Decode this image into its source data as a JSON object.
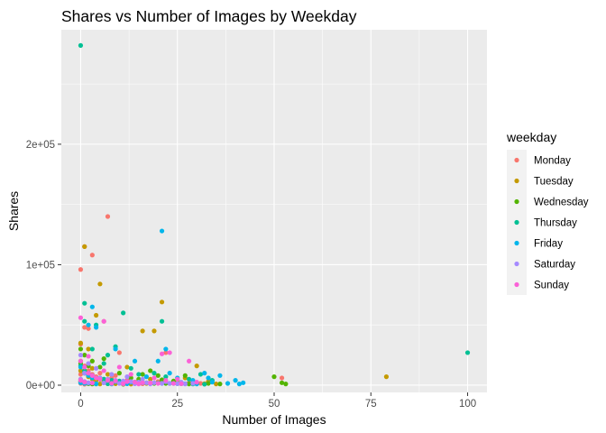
{
  "chart_data": {
    "type": "scatter",
    "title": "Shares vs Number of Images by Weekday",
    "xlabel": "Number of Images",
    "ylabel": "Shares",
    "xlim": [
      -5,
      105
    ],
    "ylim": [
      -6000,
      295000
    ],
    "x_ticks": [
      0,
      25,
      50,
      75,
      100
    ],
    "x_tick_labels": [
      "0",
      "25",
      "50",
      "75",
      "100"
    ],
    "y_ticks": [
      0,
      100000,
      200000
    ],
    "y_tick_labels": [
      "0e+00",
      "1e+05",
      "2e+05"
    ],
    "grid": true,
    "legend_title": "weekday",
    "legend_position": "right",
    "series": [
      {
        "name": "Monday",
        "color": "#F8766D",
        "points": [
          [
            7,
            140000
          ],
          [
            1,
            115000
          ],
          [
            3,
            108000
          ],
          [
            0,
            96000
          ],
          [
            1,
            48000
          ],
          [
            2,
            47000
          ],
          [
            6,
            53000
          ],
          [
            0,
            34000
          ],
          [
            10,
            27000
          ],
          [
            22,
            27000
          ],
          [
            0,
            20000
          ],
          [
            1,
            16000
          ],
          [
            2,
            12000
          ],
          [
            3,
            9000
          ],
          [
            4,
            7000
          ],
          [
            5,
            5000
          ],
          [
            6,
            4000
          ],
          [
            8,
            6000
          ],
          [
            10,
            3000
          ],
          [
            12,
            4000
          ],
          [
            15,
            3000
          ],
          [
            18,
            2000
          ],
          [
            20,
            3000
          ],
          [
            24,
            2000
          ],
          [
            28,
            2000
          ],
          [
            31,
            1500
          ],
          [
            52,
            6000
          ],
          [
            0,
            5000
          ],
          [
            1,
            3000
          ],
          [
            2,
            2000
          ],
          [
            0,
            1500
          ],
          [
            1,
            800
          ],
          [
            3,
            1500
          ],
          [
            7,
            1200
          ],
          [
            11,
            1000
          ],
          [
            13,
            2000
          ],
          [
            16,
            1200
          ],
          [
            9,
            8000
          ],
          [
            5,
            10000
          ],
          [
            0,
            9000
          ]
        ]
      },
      {
        "name": "Tuesday",
        "color": "#C49A00",
        "points": [
          [
            1,
            115000
          ],
          [
            5,
            84000
          ],
          [
            21,
            69000
          ],
          [
            4,
            58000
          ],
          [
            16,
            45000
          ],
          [
            19,
            45000
          ],
          [
            0,
            35000
          ],
          [
            2,
            30000
          ],
          [
            79,
            7000
          ],
          [
            12,
            15000
          ],
          [
            30,
            16000
          ],
          [
            0,
            20000
          ],
          [
            1,
            10000
          ],
          [
            2,
            7000
          ],
          [
            3,
            5000
          ],
          [
            4,
            4000
          ],
          [
            6,
            3000
          ],
          [
            8,
            2500
          ],
          [
            11,
            2000
          ],
          [
            14,
            2500
          ],
          [
            17,
            1500
          ],
          [
            20,
            2000
          ],
          [
            23,
            1500
          ],
          [
            26,
            2000
          ],
          [
            29,
            1500
          ],
          [
            32,
            1200
          ],
          [
            35,
            1000
          ],
          [
            0,
            3000
          ],
          [
            1,
            1800
          ],
          [
            2,
            1200
          ],
          [
            5,
            1000
          ],
          [
            9,
            1200
          ],
          [
            13,
            900
          ],
          [
            0,
            12000
          ],
          [
            3,
            14000
          ],
          [
            7,
            9000
          ],
          [
            18,
            5000
          ],
          [
            25,
            4000
          ],
          [
            27,
            6000
          ],
          [
            33,
            3000
          ]
        ]
      },
      {
        "name": "Wednesday",
        "color": "#53B400",
        "points": [
          [
            0,
            30000
          ],
          [
            1,
            25000
          ],
          [
            3,
            20000
          ],
          [
            5,
            15000
          ],
          [
            50,
            7000
          ],
          [
            52,
            2000
          ],
          [
            53,
            1000
          ],
          [
            10,
            10000
          ],
          [
            15,
            5000
          ],
          [
            20,
            8000
          ],
          [
            0,
            18000
          ],
          [
            1,
            12000
          ],
          [
            2,
            8000
          ],
          [
            4,
            6000
          ],
          [
            6,
            5000
          ],
          [
            7,
            4000
          ],
          [
            9,
            3000
          ],
          [
            12,
            2500
          ],
          [
            14,
            2000
          ],
          [
            17,
            2000
          ],
          [
            19,
            1500
          ],
          [
            22,
            1500
          ],
          [
            25,
            1200
          ],
          [
            28,
            1000
          ],
          [
            30,
            2000
          ],
          [
            33,
            1500
          ],
          [
            36,
            1000
          ],
          [
            0,
            3000
          ],
          [
            1,
            2000
          ],
          [
            3,
            1000
          ],
          [
            8,
            1500
          ],
          [
            11,
            800
          ],
          [
            24,
            3500
          ],
          [
            27,
            8000
          ],
          [
            18,
            12000
          ],
          [
            6,
            22000
          ],
          [
            2,
            16000
          ],
          [
            13,
            6000
          ],
          [
            16,
            9000
          ],
          [
            21,
            4500
          ]
        ]
      },
      {
        "name": "Thursday",
        "color": "#00C094",
        "points": [
          [
            0,
            282000
          ],
          [
            1,
            68000
          ],
          [
            11,
            60000
          ],
          [
            21,
            53000
          ],
          [
            1,
            53000
          ],
          [
            4,
            50000
          ],
          [
            9,
            32000
          ],
          [
            100,
            27000
          ],
          [
            7,
            25000
          ],
          [
            0,
            16000
          ],
          [
            1,
            12000
          ],
          [
            2,
            10000
          ],
          [
            3,
            8000
          ],
          [
            5,
            6000
          ],
          [
            6,
            5000
          ],
          [
            8,
            4000
          ],
          [
            10,
            3500
          ],
          [
            12,
            3000
          ],
          [
            14,
            2500
          ],
          [
            16,
            2000
          ],
          [
            18,
            2000
          ],
          [
            20,
            1800
          ],
          [
            23,
            1500
          ],
          [
            26,
            1200
          ],
          [
            29,
            1000
          ],
          [
            32,
            800
          ],
          [
            0,
            3000
          ],
          [
            1,
            2000
          ],
          [
            2,
            1500
          ],
          [
            4,
            1000
          ],
          [
            7,
            1200
          ],
          [
            19,
            10000
          ],
          [
            22,
            7000
          ],
          [
            28,
            5000
          ],
          [
            31,
            9000
          ],
          [
            34,
            4000
          ],
          [
            3,
            30000
          ],
          [
            6,
            18000
          ],
          [
            13,
            14000
          ],
          [
            15,
            9000
          ]
        ]
      },
      {
        "name": "Friday",
        "color": "#00B6EB",
        "points": [
          [
            21,
            128000
          ],
          [
            3,
            65000
          ],
          [
            2,
            50000
          ],
          [
            4,
            48000
          ],
          [
            9,
            30000
          ],
          [
            22,
            30000
          ],
          [
            14,
            20000
          ],
          [
            20,
            20000
          ],
          [
            32,
            10000
          ],
          [
            36,
            8000
          ],
          [
            40,
            4000
          ],
          [
            42,
            2000
          ],
          [
            0,
            15000
          ],
          [
            1,
            10000
          ],
          [
            2,
            8000
          ],
          [
            3,
            6000
          ],
          [
            5,
            5000
          ],
          [
            7,
            4000
          ],
          [
            9,
            3000
          ],
          [
            11,
            3000
          ],
          [
            13,
            2500
          ],
          [
            16,
            2000
          ],
          [
            18,
            2000
          ],
          [
            21,
            1500
          ],
          [
            24,
            1500
          ],
          [
            27,
            1200
          ],
          [
            30,
            1000
          ],
          [
            34,
            2500
          ],
          [
            38,
            1500
          ],
          [
            41,
            1000
          ],
          [
            0,
            2000
          ],
          [
            1,
            1500
          ],
          [
            4,
            1200
          ],
          [
            8,
            1000
          ],
          [
            12,
            1200
          ],
          [
            25,
            6000
          ],
          [
            29,
            4000
          ],
          [
            33,
            6000
          ],
          [
            23,
            10000
          ],
          [
            17,
            7000
          ]
        ]
      },
      {
        "name": "Saturday",
        "color": "#A58AFF",
        "points": [
          [
            0,
            25000
          ],
          [
            2,
            18000
          ],
          [
            4,
            14000
          ],
          [
            1,
            10000
          ],
          [
            3,
            8000
          ],
          [
            5,
            6000
          ],
          [
            7,
            5000
          ],
          [
            9,
            4000
          ],
          [
            11,
            3500
          ],
          [
            13,
            3000
          ],
          [
            15,
            2500
          ],
          [
            17,
            2000
          ],
          [
            19,
            2000
          ],
          [
            21,
            1500
          ],
          [
            23,
            1500
          ],
          [
            25,
            1200
          ],
          [
            27,
            1000
          ],
          [
            29,
            1500
          ],
          [
            0,
            5000
          ],
          [
            1,
            3000
          ],
          [
            2,
            2000
          ],
          [
            6,
            1800
          ],
          [
            10,
            1500
          ],
          [
            14,
            1200
          ],
          [
            18,
            1000
          ],
          [
            22,
            3000
          ],
          [
            26,
            2500
          ],
          [
            12,
            7000
          ],
          [
            8,
            9000
          ],
          [
            16,
            5000
          ]
        ]
      },
      {
        "name": "Sunday",
        "color": "#FB61D7",
        "points": [
          [
            0,
            56000
          ],
          [
            6,
            53000
          ],
          [
            23,
            27000
          ],
          [
            21,
            26000
          ],
          [
            28,
            20000
          ],
          [
            10,
            15000
          ],
          [
            0,
            20000
          ],
          [
            1,
            15000
          ],
          [
            2,
            10000
          ],
          [
            3,
            8000
          ],
          [
            4,
            6000
          ],
          [
            5,
            5000
          ],
          [
            7,
            4000
          ],
          [
            9,
            3500
          ],
          [
            12,
            3000
          ],
          [
            14,
            2500
          ],
          [
            16,
            2000
          ],
          [
            18,
            2000
          ],
          [
            20,
            1500
          ],
          [
            24,
            1500
          ],
          [
            26,
            1200
          ],
          [
            30,
            2500
          ],
          [
            0,
            4000
          ],
          [
            1,
            2500
          ],
          [
            3,
            1800
          ],
          [
            8,
            1500
          ],
          [
            11,
            1200
          ],
          [
            15,
            1000
          ],
          [
            19,
            6000
          ],
          [
            22,
            4000
          ],
          [
            25,
            5000
          ],
          [
            13,
            9000
          ],
          [
            6,
            12000
          ],
          [
            2,
            24000
          ]
        ]
      }
    ]
  }
}
